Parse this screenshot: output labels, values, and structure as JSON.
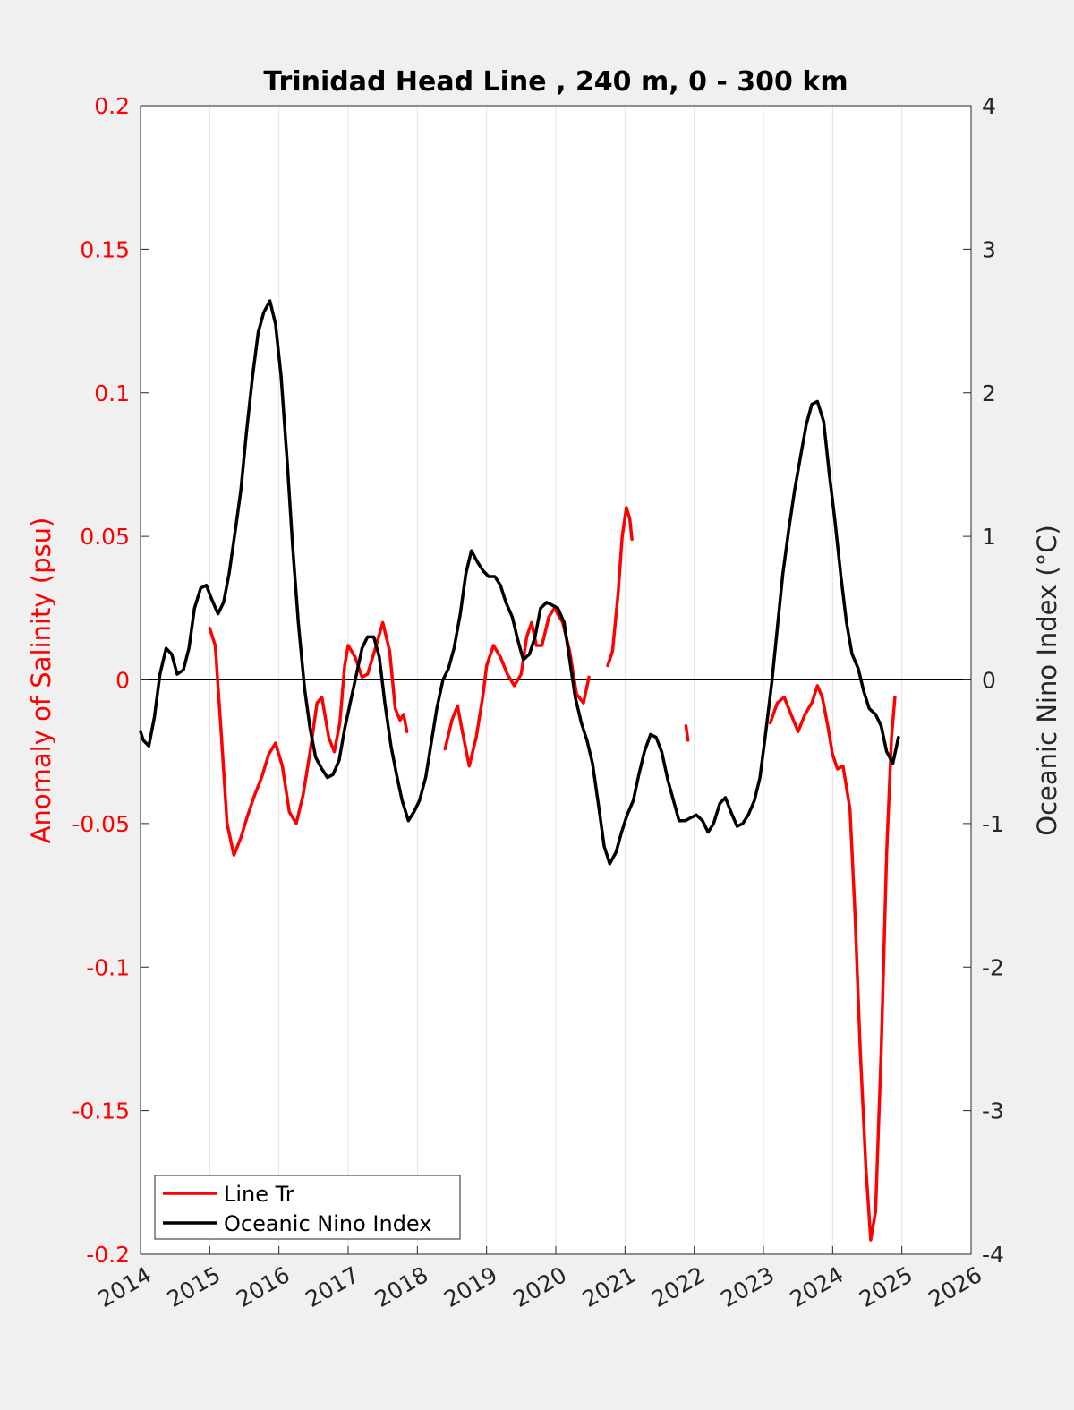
{
  "chart_data": {
    "type": "line",
    "title": "Trinidad Head Line , 240 m, 0 - 300 km",
    "ylabel_left": "Anomaly of Salinity (psu)",
    "ylabel_right": "Oceanic Nino Index (°C)",
    "xlim": [
      2014,
      2026
    ],
    "ylim_left": [
      -0.2,
      0.2
    ],
    "ylim_right": [
      -4,
      4
    ],
    "x_ticks": [
      "2014",
      "2015",
      "2016",
      "2017",
      "2018",
      "2019",
      "2020",
      "2021",
      "2022",
      "2023",
      "2024",
      "2025",
      "2026"
    ],
    "y_left_ticks": [
      "0.2",
      "0.15",
      "0.1",
      "0.05",
      "0",
      "-0.05",
      "-0.1",
      "-0.15",
      "-0.2"
    ],
    "y_right_ticks": [
      "4",
      "3",
      "2",
      "1",
      "0",
      "-1",
      "-2",
      "-3",
      "-4"
    ],
    "grid": "vertical lines at years",
    "zero_line": true,
    "legend_position": "bottom-left",
    "colors": {
      "line_tr": "#ff0000",
      "oni": "#000000",
      "background": "#f0f0f0",
      "plot_bg": "#ffffff"
    },
    "series": [
      {
        "name": "Line Tr",
        "axis": "left",
        "segments": [
          [
            [
              2015.0,
              0.018
            ],
            [
              2015.08,
              0.012
            ],
            [
              2015.17,
              -0.02
            ],
            [
              2015.25,
              -0.05
            ],
            [
              2015.35,
              -0.061
            ],
            [
              2015.45,
              -0.055
            ],
            [
              2015.55,
              -0.047
            ],
            [
              2015.65,
              -0.04
            ],
            [
              2015.75,
              -0.034
            ],
            [
              2015.85,
              -0.026
            ],
            [
              2015.95,
              -0.022
            ],
            [
              2016.05,
              -0.03
            ],
            [
              2016.15,
              -0.046
            ],
            [
              2016.25,
              -0.05
            ],
            [
              2016.35,
              -0.04
            ],
            [
              2016.45,
              -0.025
            ],
            [
              2016.55,
              -0.008
            ],
            [
              2016.62,
              -0.006
            ],
            [
              2016.72,
              -0.02
            ],
            [
              2016.8,
              -0.025
            ],
            [
              2016.88,
              -0.015
            ],
            [
              2016.95,
              0.005
            ],
            [
              2017.0,
              0.012
            ],
            [
              2017.1,
              0.008
            ],
            [
              2017.2,
              0.001
            ],
            [
              2017.28,
              0.002
            ],
            [
              2017.38,
              0.01
            ],
            [
              2017.5,
              0.02
            ],
            [
              2017.6,
              0.01
            ],
            [
              2017.68,
              -0.01
            ],
            [
              2017.75,
              -0.014
            ],
            [
              2017.8,
              -0.012
            ],
            [
              2017.85,
              -0.018
            ]
          ],
          [
            [
              2018.4,
              -0.024
            ],
            [
              2018.5,
              -0.014
            ],
            [
              2018.58,
              -0.009
            ],
            [
              2018.65,
              -0.018
            ],
            [
              2018.75,
              -0.03
            ],
            [
              2018.85,
              -0.02
            ],
            [
              2018.95,
              -0.005
            ],
            [
              2019.0,
              0.005
            ],
            [
              2019.1,
              0.012
            ],
            [
              2019.2,
              0.008
            ],
            [
              2019.3,
              0.002
            ],
            [
              2019.4,
              -0.002
            ],
            [
              2019.5,
              0.002
            ],
            [
              2019.58,
              0.015
            ],
            [
              2019.65,
              0.02
            ],
            [
              2019.72,
              0.012
            ],
            [
              2019.8,
              0.012
            ],
            [
              2019.9,
              0.022
            ],
            [
              2019.98,
              0.025
            ],
            [
              2020.1,
              0.02
            ],
            [
              2020.2,
              0.01
            ],
            [
              2020.3,
              -0.005
            ],
            [
              2020.4,
              -0.008
            ],
            [
              2020.48,
              0.001
            ]
          ],
          [
            [
              2020.75,
              0.005
            ],
            [
              2020.82,
              0.01
            ],
            [
              2020.9,
              0.03
            ],
            [
              2020.96,
              0.05
            ],
            [
              2021.02,
              0.06
            ],
            [
              2021.07,
              0.056
            ],
            [
              2021.1,
              0.049
            ]
          ],
          [
            [
              2021.88,
              -0.016
            ],
            [
              2021.91,
              -0.021
            ]
          ],
          [
            [
              2023.1,
              -0.015
            ],
            [
              2023.2,
              -0.008
            ],
            [
              2023.3,
              -0.006
            ],
            [
              2023.4,
              -0.012
            ],
            [
              2023.5,
              -0.018
            ],
            [
              2023.6,
              -0.012
            ],
            [
              2023.7,
              -0.008
            ],
            [
              2023.78,
              -0.002
            ],
            [
              2023.85,
              -0.006
            ],
            [
              2023.93,
              -0.016
            ],
            [
              2024.0,
              -0.026
            ],
            [
              2024.07,
              -0.031
            ],
            [
              2024.15,
              -0.03
            ],
            [
              2024.25,
              -0.045
            ],
            [
              2024.32,
              -0.08
            ],
            [
              2024.4,
              -0.13
            ],
            [
              2024.48,
              -0.17
            ],
            [
              2024.55,
              -0.195
            ],
            [
              2024.62,
              -0.185
            ],
            [
              2024.7,
              -0.13
            ],
            [
              2024.78,
              -0.06
            ],
            [
              2024.85,
              -0.02
            ],
            [
              2024.9,
              -0.006
            ]
          ]
        ]
      },
      {
        "name": "Oceanic Nino Index",
        "axis": "right",
        "segments": [
          [
            [
              2014.0,
              -0.36
            ],
            [
              2014.04,
              -0.42
            ],
            [
              2014.12,
              -0.46
            ],
            [
              2014.2,
              -0.26
            ],
            [
              2014.28,
              0.04
            ],
            [
              2014.37,
              0.22
            ],
            [
              2014.45,
              0.18
            ],
            [
              2014.53,
              0.04
            ],
            [
              2014.62,
              0.07
            ],
            [
              2014.7,
              0.22
            ],
            [
              2014.78,
              0.5
            ],
            [
              2014.87,
              0.64
            ],
            [
              2014.95,
              0.66
            ],
            [
              2015.03,
              0.56
            ],
            [
              2015.12,
              0.46
            ],
            [
              2015.2,
              0.54
            ],
            [
              2015.28,
              0.74
            ],
            [
              2015.37,
              1.04
            ],
            [
              2015.45,
              1.32
            ],
            [
              2015.53,
              1.72
            ],
            [
              2015.62,
              2.12
            ],
            [
              2015.7,
              2.42
            ],
            [
              2015.78,
              2.56
            ],
            [
              2015.87,
              2.64
            ],
            [
              2015.95,
              2.48
            ],
            [
              2016.03,
              2.12
            ],
            [
              2016.12,
              1.52
            ],
            [
              2016.2,
              0.92
            ],
            [
              2016.28,
              0.4
            ],
            [
              2016.37,
              -0.06
            ],
            [
              2016.45,
              -0.34
            ],
            [
              2016.53,
              -0.54
            ],
            [
              2016.62,
              -0.62
            ],
            [
              2016.7,
              -0.68
            ],
            [
              2016.78,
              -0.66
            ],
            [
              2016.87,
              -0.56
            ],
            [
              2016.95,
              -0.34
            ],
            [
              2017.03,
              -0.16
            ],
            [
              2017.12,
              0.04
            ],
            [
              2017.2,
              0.22
            ],
            [
              2017.28,
              0.3
            ],
            [
              2017.37,
              0.3
            ],
            [
              2017.45,
              0.16
            ],
            [
              2017.53,
              -0.16
            ],
            [
              2017.62,
              -0.46
            ],
            [
              2017.7,
              -0.66
            ],
            [
              2017.78,
              -0.84
            ],
            [
              2017.87,
              -0.98
            ],
            [
              2017.95,
              -0.92
            ],
            [
              2018.03,
              -0.84
            ],
            [
              2018.12,
              -0.68
            ],
            [
              2018.2,
              -0.44
            ],
            [
              2018.28,
              -0.2
            ],
            [
              2018.37,
              0.0
            ],
            [
              2018.45,
              0.08
            ],
            [
              2018.53,
              0.22
            ],
            [
              2018.62,
              0.46
            ],
            [
              2018.7,
              0.74
            ],
            [
              2018.78,
              0.9
            ],
            [
              2018.87,
              0.82
            ],
            [
              2018.95,
              0.76
            ],
            [
              2019.03,
              0.72
            ],
            [
              2019.12,
              0.72
            ],
            [
              2019.2,
              0.66
            ],
            [
              2019.28,
              0.54
            ],
            [
              2019.37,
              0.44
            ],
            [
              2019.45,
              0.28
            ],
            [
              2019.53,
              0.14
            ],
            [
              2019.62,
              0.18
            ],
            [
              2019.7,
              0.3
            ],
            [
              2019.78,
              0.5
            ],
            [
              2019.87,
              0.54
            ],
            [
              2019.95,
              0.52
            ],
            [
              2020.03,
              0.5
            ],
            [
              2020.12,
              0.4
            ],
            [
              2020.2,
              0.14
            ],
            [
              2020.28,
              -0.12
            ],
            [
              2020.37,
              -0.3
            ],
            [
              2020.45,
              -0.42
            ],
            [
              2020.53,
              -0.58
            ],
            [
              2020.62,
              -0.88
            ],
            [
              2020.7,
              -1.16
            ],
            [
              2020.78,
              -1.28
            ],
            [
              2020.87,
              -1.2
            ],
            [
              2020.95,
              -1.06
            ],
            [
              2021.03,
              -0.94
            ],
            [
              2021.12,
              -0.84
            ],
            [
              2021.2,
              -0.66
            ],
            [
              2021.28,
              -0.5
            ],
            [
              2021.37,
              -0.38
            ],
            [
              2021.45,
              -0.4
            ],
            [
              2021.53,
              -0.5
            ],
            [
              2021.62,
              -0.7
            ],
            [
              2021.7,
              -0.84
            ],
            [
              2021.78,
              -0.98
            ],
            [
              2021.87,
              -0.98
            ],
            [
              2021.95,
              -0.96
            ],
            [
              2022.03,
              -0.94
            ],
            [
              2022.12,
              -0.98
            ],
            [
              2022.2,
              -1.06
            ],
            [
              2022.28,
              -1.0
            ],
            [
              2022.37,
              -0.86
            ],
            [
              2022.45,
              -0.82
            ],
            [
              2022.53,
              -0.92
            ],
            [
              2022.62,
              -1.02
            ],
            [
              2022.7,
              -1.0
            ],
            [
              2022.78,
              -0.94
            ],
            [
              2022.87,
              -0.84
            ],
            [
              2022.95,
              -0.68
            ],
            [
              2023.03,
              -0.38
            ],
            [
              2023.12,
              -0.02
            ],
            [
              2023.2,
              0.36
            ],
            [
              2023.28,
              0.74
            ],
            [
              2023.37,
              1.06
            ],
            [
              2023.45,
              1.32
            ],
            [
              2023.53,
              1.54
            ],
            [
              2023.62,
              1.78
            ],
            [
              2023.7,
              1.92
            ],
            [
              2023.78,
              1.94
            ],
            [
              2023.87,
              1.8
            ],
            [
              2023.95,
              1.44
            ],
            [
              2024.03,
              1.12
            ],
            [
              2024.12,
              0.72
            ],
            [
              2024.2,
              0.4
            ],
            [
              2024.28,
              0.18
            ],
            [
              2024.37,
              0.08
            ],
            [
              2024.45,
              -0.08
            ],
            [
              2024.53,
              -0.2
            ],
            [
              2024.62,
              -0.24
            ],
            [
              2024.7,
              -0.32
            ],
            [
              2024.78,
              -0.5
            ],
            [
              2024.87,
              -0.58
            ],
            [
              2024.95,
              -0.4
            ]
          ]
        ]
      }
    ]
  }
}
